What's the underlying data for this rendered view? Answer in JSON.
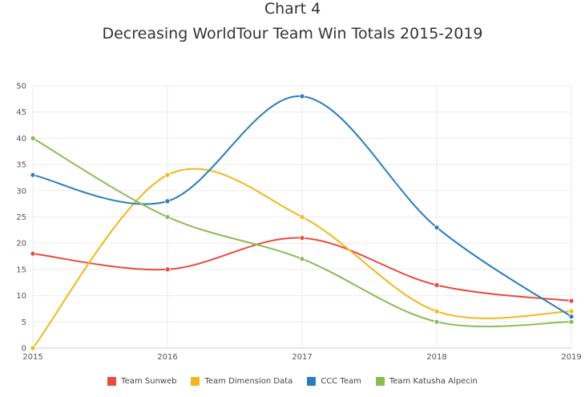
{
  "header": {
    "title": "Chart 4",
    "subtitle": "Decreasing WorldTour Team Win Totals 2015-2019"
  },
  "chart_data": {
    "type": "line",
    "title": "Decreasing WorldTour Team Win Totals 2015-2019",
    "xlabel": "",
    "ylabel": "",
    "x": [
      "2015",
      "2016",
      "2017",
      "2018",
      "2019"
    ],
    "ylim": [
      0,
      50
    ],
    "yticks": [
      0,
      5,
      10,
      15,
      20,
      25,
      30,
      35,
      40,
      45,
      50
    ],
    "grid": true,
    "legend": "bottom",
    "series": [
      {
        "name": "Team Sunweb",
        "color": "#e74c3c",
        "values": [
          18,
          15,
          21,
          12,
          9
        ]
      },
      {
        "name": "Team Dimension Data",
        "color": "#f1b81c",
        "values": [
          0,
          33,
          25,
          7,
          7
        ]
      },
      {
        "name": "CCC Team",
        "color": "#2b7bc0",
        "values": [
          33,
          28,
          48,
          23,
          6
        ]
      },
      {
        "name": "Team Katusha Alpecin",
        "color": "#8bbb55",
        "values": [
          40,
          25,
          17,
          5,
          5
        ]
      }
    ]
  }
}
